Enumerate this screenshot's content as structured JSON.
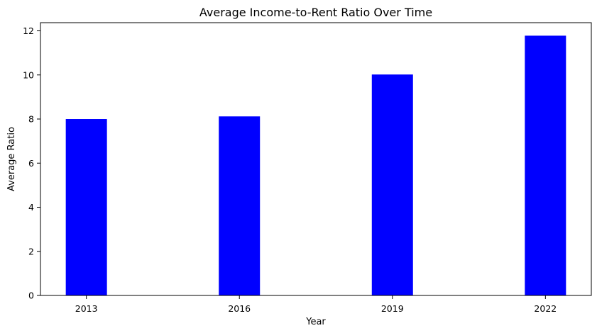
{
  "chart_data": {
    "type": "bar",
    "title": "Average Income-to-Rent Ratio Over Time",
    "xlabel": "Year",
    "ylabel": "Average Ratio",
    "categories": [
      "2013",
      "2016",
      "2019",
      "2022"
    ],
    "values": [
      8.0,
      8.12,
      10.02,
      11.78
    ],
    "ylim": [
      0,
      12.37
    ],
    "yticks": [
      0,
      2,
      4,
      6,
      8,
      10,
      12
    ],
    "grid": false,
    "bar_color": "#0000ff"
  }
}
